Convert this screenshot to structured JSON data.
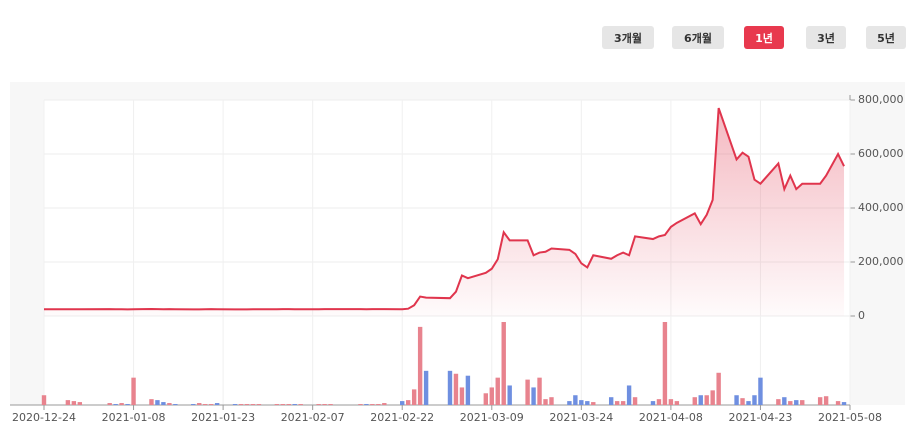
{
  "buttons": [
    {
      "label": "3개월",
      "selected": false
    },
    {
      "label": "6개월",
      "selected": false
    },
    {
      "label": "1년",
      "selected": true
    },
    {
      "label": "3년",
      "selected": false
    },
    {
      "label": "5년",
      "selected": false
    }
  ],
  "chart_data": {
    "type": "line",
    "x": [
      "2020-12-24",
      "2020-12-28",
      "2020-12-29",
      "2020-12-30",
      "2021-01-04",
      "2021-01-05",
      "2021-01-06",
      "2021-01-07",
      "2021-01-08",
      "2021-01-11",
      "2021-01-12",
      "2021-01-13",
      "2021-01-14",
      "2021-01-15",
      "2021-01-18",
      "2021-01-19",
      "2021-01-20",
      "2021-01-21",
      "2021-01-22",
      "2021-01-25",
      "2021-01-26",
      "2021-01-27",
      "2021-01-28",
      "2021-01-29",
      "2021-02-01",
      "2021-02-02",
      "2021-02-03",
      "2021-02-04",
      "2021-02-05",
      "2021-02-08",
      "2021-02-09",
      "2021-02-10",
      "2021-02-15",
      "2021-02-16",
      "2021-02-17",
      "2021-02-18",
      "2021-02-19",
      "2021-02-22",
      "2021-02-23",
      "2021-02-24",
      "2021-02-25",
      "2021-02-26",
      "2021-03-02",
      "2021-03-03",
      "2021-03-04",
      "2021-03-05",
      "2021-03-08",
      "2021-03-09",
      "2021-03-10",
      "2021-03-11",
      "2021-03-12",
      "2021-03-15",
      "2021-03-16",
      "2021-03-17",
      "2021-03-18",
      "2021-03-19",
      "2021-03-22",
      "2021-03-23",
      "2021-03-24",
      "2021-03-25",
      "2021-03-26",
      "2021-03-29",
      "2021-03-30",
      "2021-03-31",
      "2021-04-01",
      "2021-04-02",
      "2021-04-05",
      "2021-04-06",
      "2021-04-07",
      "2021-04-08",
      "2021-04-09",
      "2021-04-12",
      "2021-04-13",
      "2021-04-14",
      "2021-04-15",
      "2021-04-16",
      "2021-04-19",
      "2021-04-20",
      "2021-04-21",
      "2021-04-22",
      "2021-04-23",
      "2021-04-26",
      "2021-04-27",
      "2021-04-28",
      "2021-04-29",
      "2021-04-30",
      "2021-05-03",
      "2021-05-04",
      "2021-05-06",
      "2021-05-07"
    ],
    "series": [
      {
        "color": "#e0354d",
        "values": [
          25000,
          25000,
          25000,
          25000,
          25500,
          25000,
          25000,
          24500,
          25000,
          26000,
          25500,
          25000,
          25500,
          25000,
          24500,
          24500,
          25000,
          25500,
          25000,
          24500,
          24500,
          24500,
          25000,
          25000,
          25000,
          25500,
          25500,
          25000,
          25000,
          25000,
          25500,
          25500,
          25500,
          25000,
          25500,
          25500,
          25500,
          25000,
          27000,
          40000,
          72000,
          68000,
          66000,
          90000,
          150000,
          140000,
          160000,
          175000,
          210000,
          310000,
          280000,
          280000,
          225000,
          235000,
          238000,
          250000,
          245000,
          230000,
          195000,
          180000,
          225000,
          212000,
          225000,
          235000,
          225000,
          295000,
          285000,
          295000,
          300000,
          330000,
          345000,
          380000,
          340000,
          375000,
          430000,
          770000,
          580000,
          605000,
          590000,
          505000,
          490000,
          565000,
          470000,
          520000,
          470000,
          490000,
          490000,
          520000,
          600000,
          555000
        ]
      },
      {
        "type": "bar",
        "up_color": "#e8838e",
        "down_color": "#6f8fe0",
        "values": [
          10,
          5,
          4,
          3,
          2,
          1,
          2,
          1,
          28,
          6,
          5,
          3,
          2,
          1,
          1,
          2,
          1,
          1,
          2,
          1,
          1,
          1,
          1,
          1,
          1,
          1,
          1,
          1,
          1,
          1,
          1,
          1,
          1,
          1,
          1,
          1,
          2,
          4,
          5,
          16,
          80,
          35,
          35,
          32,
          18,
          30,
          12,
          18,
          28,
          85,
          20,
          26,
          18,
          28,
          6,
          8,
          4,
          10,
          5,
          4,
          3,
          8,
          4,
          4,
          20,
          8,
          4,
          6,
          85,
          6,
          4,
          8,
          10,
          10,
          15,
          33,
          10,
          7,
          4,
          10,
          28,
          6,
          8,
          4,
          5,
          5,
          8,
          9,
          4,
          3
        ]
      }
    ],
    "xlim": [
      "2020-12-24",
      "2021-05-08"
    ],
    "xticks": [
      "2020-12-24",
      "2021-01-08",
      "2021-01-23",
      "2021-02-07",
      "2021-02-22",
      "2021-03-09",
      "2021-03-24",
      "2021-04-08",
      "2021-04-23",
      "2021-05-08"
    ],
    "ylim": [
      0,
      800000
    ],
    "yticks": [
      0,
      {
        "value": 200000,
        "label": "200,000"
      },
      {
        "value": 400000,
        "label": "400,000"
      },
      {
        "value": 600000,
        "label": "600,000"
      },
      {
        "value": 800000,
        "label": "800,000"
      }
    ],
    "grid": true
  }
}
